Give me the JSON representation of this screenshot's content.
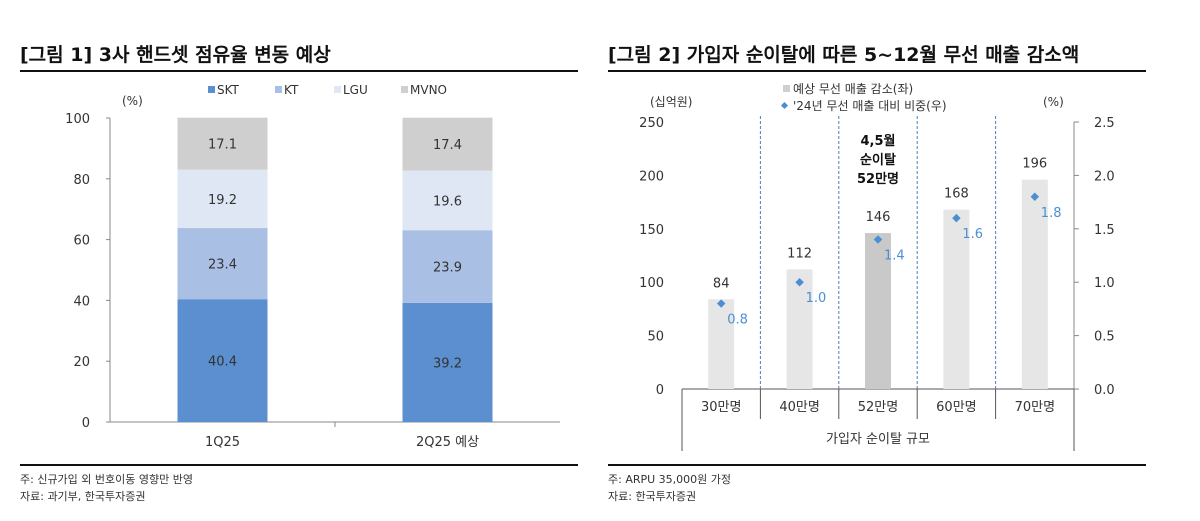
{
  "figure1": {
    "title": "[그림 1] 3사 핸드셋 점유율 변동 예상",
    "note": "주: 신규가입 외 번호이동 영향만 반영",
    "source": "자료: 과기부, 한국투자증권"
  },
  "figure2": {
    "title": "[그림 2] 가입자 순이탈에 따른 5~12월 무선 매출 감소액",
    "note": "주: ARPU 35,000원 가정",
    "source": "자료: 한국투자증권"
  },
  "chart_data": [
    {
      "type": "bar",
      "stacked": true,
      "title": "[그림 1] 3사 핸드셋 점유율 변동 예상",
      "ylabel": "(%)",
      "ylim": [
        0,
        100
      ],
      "yticks": [
        0,
        20,
        40,
        60,
        80,
        100
      ],
      "categories": [
        "1Q25",
        "2Q25 예상"
      ],
      "legend_position": "top",
      "series": [
        {
          "name": "SKT",
          "values": [
            40.4,
            39.2
          ],
          "color": "#5b8fcf"
        },
        {
          "name": "KT",
          "values": [
            23.4,
            23.9
          ],
          "color": "#a9bfe3"
        },
        {
          "name": "LGU",
          "values": [
            19.2,
            19.6
          ],
          "color": "#dfe7f5"
        },
        {
          "name": "MVNO",
          "values": [
            17.1,
            17.4
          ],
          "color": "#cfcfcf"
        }
      ]
    },
    {
      "type": "bar",
      "title": "[그림 2] 가입자 순이탈에 따른 5~12월 무선 매출 감소액",
      "xlabel": "가입자 순이탈 규모",
      "ylabel_left": "(십억원)",
      "ylabel_right": "(%)",
      "ylim_left": [
        0,
        250
      ],
      "yticks_left": [
        0,
        50,
        100,
        150,
        200,
        250
      ],
      "ylim_right": [
        0.0,
        2.5
      ],
      "yticks_right": [
        "0.0",
        "0.5",
        "1.0",
        "1.5",
        "2.0",
        "2.5"
      ],
      "categories": [
        "30만명",
        "40만명",
        "52만명",
        "60만명",
        "70만명"
      ],
      "highlight_index": 2,
      "annotation": [
        "4,5월",
        "순이탈",
        "52만명"
      ],
      "legend_position": "top",
      "series": [
        {
          "name": "예상 무선 매출 감소(좌)",
          "type": "bar",
          "axis": "left",
          "values": [
            84,
            112,
            146,
            168,
            196
          ],
          "color": "#e6e6e6",
          "highlight_color": "#c9c9c9"
        },
        {
          "name": "'24년 무선 매출 대비 비중(우)",
          "type": "scatter",
          "axis": "right",
          "values": [
            0.8,
            1.0,
            1.4,
            1.6,
            1.8
          ],
          "labels": [
            "0.8",
            "1.0",
            "1.4",
            "1.6",
            "1.8"
          ],
          "color": "#4a8fd4"
        }
      ]
    }
  ]
}
